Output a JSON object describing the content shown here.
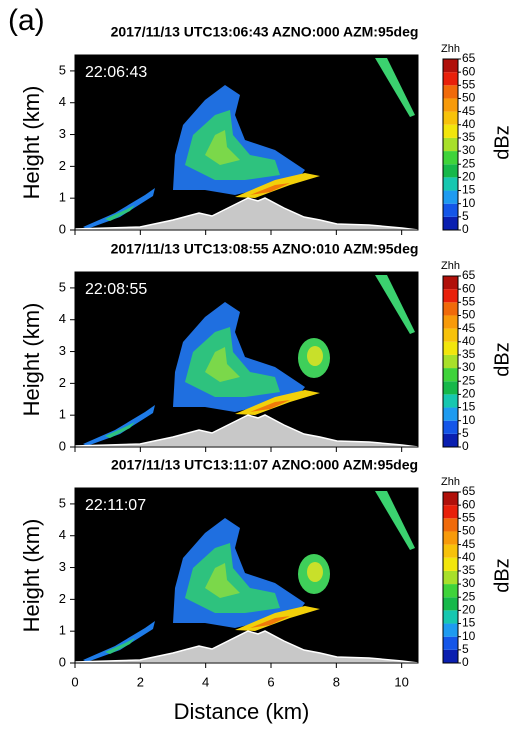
{
  "panel_label": "(a)",
  "chart_data": [
    {
      "type": "heatmap",
      "title": "2017/11/13 UTC13:06:43 AZNO:000 AZM:95deg",
      "annotation": "22:06:43",
      "y_label": "Height (km)",
      "xlim": [
        0,
        10.5
      ],
      "xticks": [
        0,
        2,
        4,
        6,
        8,
        10
      ],
      "ylim": [
        0,
        5.5
      ],
      "yticks": [
        0,
        1,
        2,
        3,
        4,
        5
      ],
      "colorbar": {
        "title": "Zhh",
        "label": "dBz",
        "ticks": [
          0,
          5,
          10,
          15,
          20,
          25,
          30,
          35,
          40,
          45,
          50,
          55,
          60,
          65
        ],
        "colors": [
          "#0a1fb0",
          "#1456e8",
          "#1e9bf0",
          "#17c7b0",
          "#16b84a",
          "#3fd33a",
          "#a8e02a",
          "#f2e60c",
          "#f7c20a",
          "#f79a0a",
          "#f06a0a",
          "#e8200a",
          "#b0100a"
        ]
      }
    },
    {
      "type": "heatmap",
      "title": "2017/11/13 UTC13:08:55 AZNO:010 AZM:95deg",
      "annotation": "22:08:55",
      "y_label": "Height (km)",
      "xlim": [
        0,
        10.5
      ],
      "xticks": [
        0,
        2,
        4,
        6,
        8,
        10
      ],
      "ylim": [
        0,
        5.5
      ],
      "yticks": [
        0,
        1,
        2,
        3,
        4,
        5
      ],
      "colorbar": {
        "title": "Zhh",
        "label": "dBz",
        "ticks": [
          0,
          5,
          10,
          15,
          20,
          25,
          30,
          35,
          40,
          45,
          50,
          55,
          60,
          65
        ],
        "colors": [
          "#0a1fb0",
          "#1456e8",
          "#1e9bf0",
          "#17c7b0",
          "#16b84a",
          "#3fd33a",
          "#a8e02a",
          "#f2e60c",
          "#f7c20a",
          "#f79a0a",
          "#f06a0a",
          "#e8200a",
          "#b0100a"
        ]
      }
    },
    {
      "type": "heatmap",
      "title": "2017/11/13 UTC13:11:07 AZNO:000 AZM:95deg",
      "annotation": "22:11:07",
      "y_label": "Height (km)",
      "x_label": "Distance (km)",
      "xlim": [
        0,
        10.5
      ],
      "xticks": [
        0,
        2,
        4,
        6,
        8,
        10
      ],
      "ylim": [
        0,
        5.5
      ],
      "yticks": [
        0,
        1,
        2,
        3,
        4,
        5
      ],
      "colorbar": {
        "title": "Zhh",
        "label": "dBz",
        "ticks": [
          0,
          5,
          10,
          15,
          20,
          25,
          30,
          35,
          40,
          45,
          50,
          55,
          60,
          65
        ],
        "colors": [
          "#0a1fb0",
          "#1456e8",
          "#1e9bf0",
          "#17c7b0",
          "#16b84a",
          "#3fd33a",
          "#a8e02a",
          "#f2e60c",
          "#f7c20a",
          "#f79a0a",
          "#f06a0a",
          "#e8200a",
          "#b0100a"
        ]
      }
    }
  ]
}
